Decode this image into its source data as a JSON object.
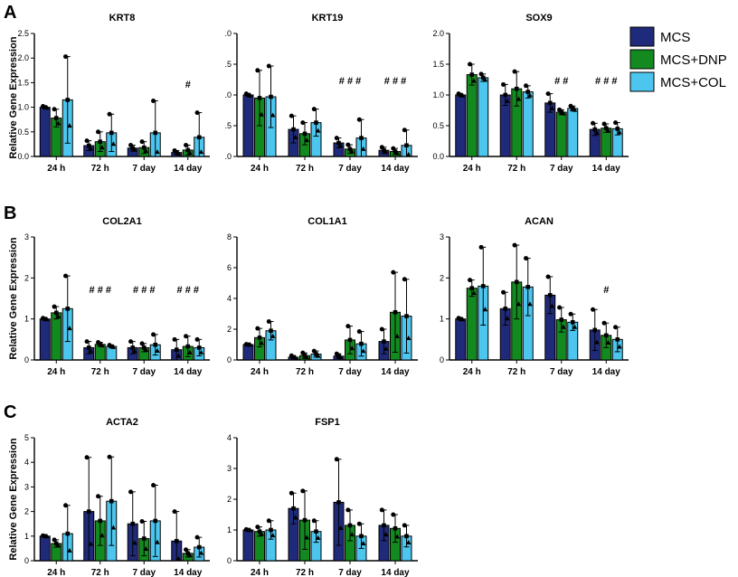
{
  "panel_labels": [
    "A",
    "B",
    "C"
  ],
  "ylabel": "Relative Gene Expression",
  "legend": [
    {
      "name": "MCS",
      "color": "#1f2a7a"
    },
    {
      "name": "MCS+DNP",
      "color": "#138a1f"
    },
    {
      "name": "MCS+COL",
      "color": "#4cc6ee"
    }
  ],
  "chart_data": [
    {
      "type": "bar",
      "title": "KRT8",
      "categories": [
        "24 h",
        "72 h",
        "7 day",
        "14 day"
      ],
      "ylim": [
        0,
        2.5
      ],
      "yticks": [
        "0.0",
        "0.5",
        "1.0",
        "1.5",
        "2.0",
        "2.5"
      ],
      "series": [
        {
          "name": "MCS",
          "values": [
            1.0,
            0.22,
            0.17,
            0.08
          ],
          "err": [
            0.02,
            0.1,
            0.06,
            0.04
          ]
        },
        {
          "name": "MCS+DNP",
          "values": [
            0.78,
            0.3,
            0.18,
            0.13
          ],
          "err": [
            0.18,
            0.2,
            0.12,
            0.1
          ]
        },
        {
          "name": "MCS+COL",
          "values": [
            1.15,
            0.48,
            0.48,
            0.39
          ],
          "err": [
            0.88,
            0.38,
            0.65,
            0.5
          ]
        }
      ],
      "annotations": [
        {
          "category": "14 day",
          "text": "#"
        }
      ]
    },
    {
      "type": "bar",
      "title": "KRT19",
      "categories": [
        "24 h",
        "72 h",
        "7 day",
        "14 day"
      ],
      "ylim": [
        0,
        2.0
      ],
      "yticks": [
        ".0",
        ".5",
        ".0",
        ".5",
        ".0"
      ],
      "series": [
        {
          "name": "MCS",
          "values": [
            1.0,
            0.44,
            0.22,
            0.1
          ],
          "err": [
            0.02,
            0.22,
            0.08,
            0.05
          ]
        },
        {
          "name": "MCS+DNP",
          "values": [
            0.95,
            0.37,
            0.12,
            0.08
          ],
          "err": [
            0.45,
            0.18,
            0.07,
            0.05
          ]
        },
        {
          "name": "MCS+COL",
          "values": [
            0.97,
            0.55,
            0.3,
            0.18
          ],
          "err": [
            0.5,
            0.22,
            0.3,
            0.25
          ]
        }
      ],
      "annotations": [
        {
          "category": "7 day",
          "text": "# # #"
        },
        {
          "category": "14 day",
          "text": "# # #"
        }
      ]
    },
    {
      "type": "bar",
      "title": "SOX9",
      "categories": [
        "24 h",
        "72 h",
        "7 day",
        "14 day"
      ],
      "ylim": [
        0,
        2.0
      ],
      "yticks": [
        "0.0",
        "0.5",
        "1.0",
        "1.5",
        "2.0"
      ],
      "series": [
        {
          "name": "MCS",
          "values": [
            1.0,
            1.0,
            0.87,
            0.44
          ],
          "err": [
            0.02,
            0.17,
            0.15,
            0.1
          ]
        },
        {
          "name": "MCS+DNP",
          "values": [
            1.33,
            1.1,
            0.72,
            0.46
          ],
          "err": [
            0.17,
            0.28,
            0.04,
            0.07
          ]
        },
        {
          "name": "MCS+COL",
          "values": [
            1.28,
            1.05,
            0.78,
            0.45
          ],
          "err": [
            0.06,
            0.1,
            0.04,
            0.1
          ]
        }
      ],
      "annotations": [
        {
          "category": "7 day",
          "text": "# #"
        },
        {
          "category": "14 day",
          "text": "# # #"
        }
      ]
    },
    {
      "type": "bar",
      "title": "COL2A1",
      "categories": [
        "24 h",
        "72 h",
        "7 day",
        "14 day"
      ],
      "ylim": [
        0,
        3
      ],
      "yticks": [
        "0",
        "1",
        "2",
        "3"
      ],
      "series": [
        {
          "name": "MCS",
          "values": [
            1.0,
            0.3,
            0.3,
            0.25
          ],
          "err": [
            0.02,
            0.15,
            0.15,
            0.25
          ]
        },
        {
          "name": "MCS+DNP",
          "values": [
            1.15,
            0.38,
            0.3,
            0.33
          ],
          "err": [
            0.15,
            0.05,
            0.1,
            0.25
          ]
        },
        {
          "name": "MCS+COL",
          "values": [
            1.25,
            0.33,
            0.37,
            0.3
          ],
          "err": [
            0.8,
            0.03,
            0.25,
            0.2
          ]
        }
      ],
      "annotations": [
        {
          "category": "72 h",
          "text": "# # #"
        },
        {
          "category": "7 day",
          "text": "# # #"
        },
        {
          "category": "14 day",
          "text": "# # #"
        }
      ]
    },
    {
      "type": "bar",
      "title": "COL1A1",
      "categories": [
        "24 h",
        "72 h",
        "7 day",
        "14 day"
      ],
      "ylim": [
        0,
        8
      ],
      "yticks": [
        "0",
        "2",
        "4",
        "6",
        "8"
      ],
      "series": [
        {
          "name": "MCS",
          "values": [
            1.0,
            0.18,
            0.25,
            1.2
          ],
          "err": [
            0.02,
            0.1,
            0.15,
            0.8
          ]
        },
        {
          "name": "MCS+DNP",
          "values": [
            1.45,
            0.28,
            1.3,
            3.1
          ],
          "err": [
            0.6,
            0.18,
            0.9,
            2.6
          ]
        },
        {
          "name": "MCS+COL",
          "values": [
            1.9,
            0.38,
            1.05,
            2.85
          ],
          "err": [
            0.6,
            0.2,
            0.8,
            2.4
          ]
        }
      ],
      "annotations": []
    },
    {
      "type": "bar",
      "title": "ACAN",
      "categories": [
        "24 h",
        "72 h",
        "7 day",
        "14 day"
      ],
      "ylim": [
        0,
        3
      ],
      "yticks": [
        "0",
        "1",
        "2",
        "3"
      ],
      "series": [
        {
          "name": "MCS",
          "values": [
            1.0,
            1.25,
            1.58,
            0.73
          ],
          "err": [
            0.02,
            0.4,
            0.45,
            0.5
          ]
        },
        {
          "name": "MCS+DNP",
          "values": [
            1.75,
            1.9,
            0.98,
            0.6
          ],
          "err": [
            0.2,
            0.9,
            0.3,
            0.3
          ]
        },
        {
          "name": "MCS+COL",
          "values": [
            1.8,
            1.78,
            0.92,
            0.5
          ],
          "err": [
            0.95,
            0.7,
            0.2,
            0.3
          ]
        }
      ],
      "annotations": [
        {
          "category": "14 day",
          "text": "#"
        }
      ]
    },
    {
      "type": "bar",
      "title": "ACTA2",
      "categories": [
        "24 h",
        "72 h",
        "7 day",
        "14 day"
      ],
      "ylim": [
        0,
        5
      ],
      "yticks": [
        "0",
        "1",
        "2",
        "3",
        "4",
        "5"
      ],
      "series": [
        {
          "name": "MCS",
          "values": [
            1.0,
            2.0,
            1.5,
            0.8
          ],
          "err": [
            0.02,
            2.2,
            1.3,
            1.2
          ]
        },
        {
          "name": "MCS+DNP",
          "values": [
            0.7,
            1.62,
            0.9,
            0.3
          ],
          "err": [
            0.15,
            1.0,
            0.7,
            0.15
          ]
        },
        {
          "name": "MCS+COL",
          "values": [
            1.1,
            2.42,
            1.62,
            0.55
          ],
          "err": [
            1.15,
            1.8,
            1.45,
            0.4
          ]
        }
      ],
      "annotations": []
    },
    {
      "type": "bar",
      "title": "FSP1",
      "categories": [
        "24 h",
        "72 h",
        "7 day",
        "14 day"
      ],
      "ylim": [
        0,
        4
      ],
      "yticks": [
        "0",
        "1",
        "2",
        "3",
        "4"
      ],
      "series": [
        {
          "name": "MCS",
          "values": [
            1.0,
            1.7,
            1.9,
            1.15
          ],
          "err": [
            0.02,
            0.5,
            1.4,
            0.5
          ]
        },
        {
          "name": "MCS+DNP",
          "values": [
            0.95,
            1.32,
            1.15,
            1.05
          ],
          "err": [
            0.15,
            0.95,
            0.5,
            0.45
          ]
        },
        {
          "name": "MCS+COL",
          "values": [
            1.0,
            0.95,
            0.8,
            0.8
          ],
          "err": [
            0.3,
            0.35,
            0.4,
            0.35
          ]
        }
      ],
      "annotations": []
    }
  ]
}
